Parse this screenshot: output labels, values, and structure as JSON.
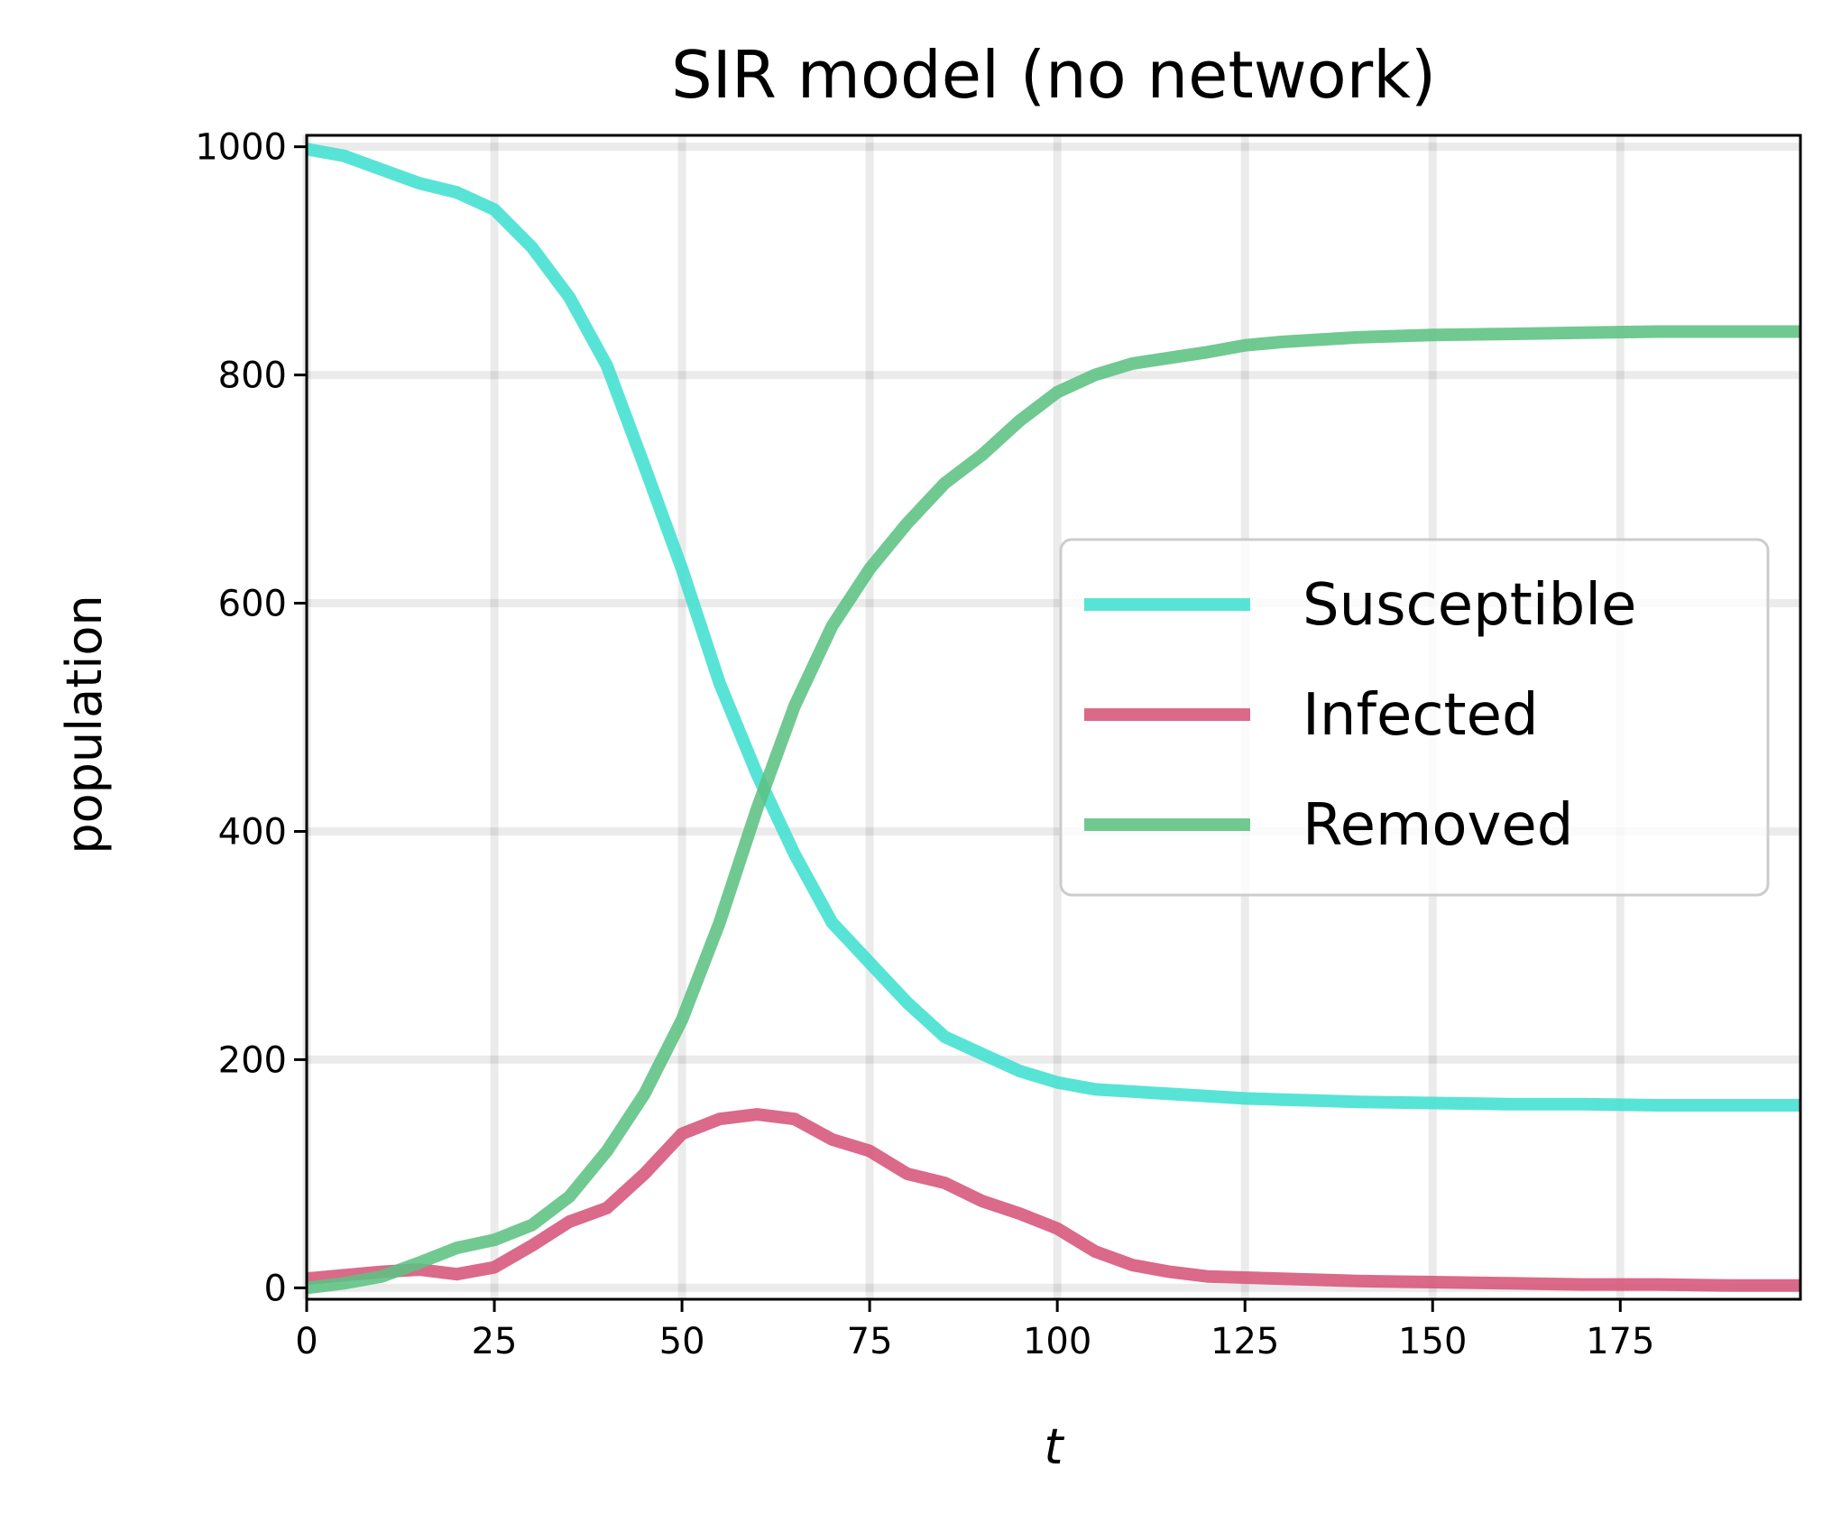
{
  "chart_data": {
    "type": "line",
    "title": "SIR model (no network)",
    "xlabel": "t",
    "ylabel": "population",
    "xlim": [
      0,
      199
    ],
    "ylim": [
      -10,
      1010
    ],
    "xticks": [
      0,
      25,
      50,
      75,
      100,
      125,
      150,
      175
    ],
    "yticks": [
      0,
      200,
      400,
      600,
      800,
      1000
    ],
    "grid": true,
    "legend_position": "center-right",
    "series": [
      {
        "name": "Susceptible",
        "color": "#40E0D0",
        "x": [
          0,
          5,
          10,
          15,
          20,
          25,
          30,
          35,
          40,
          45,
          50,
          55,
          60,
          65,
          70,
          75,
          80,
          85,
          90,
          95,
          100,
          105,
          110,
          115,
          120,
          125,
          130,
          135,
          140,
          150,
          160,
          170,
          180,
          190,
          199
        ],
        "y": [
          998,
          992,
          980,
          968,
          960,
          945,
          912,
          868,
          808,
          720,
          630,
          530,
          450,
          380,
          320,
          285,
          250,
          220,
          205,
          190,
          180,
          174,
          172,
          170,
          168,
          166,
          165,
          164,
          163,
          162,
          161,
          161,
          160,
          160,
          160
        ]
      },
      {
        "name": "Infected",
        "color": "#D6547A",
        "x": [
          0,
          5,
          10,
          15,
          20,
          25,
          30,
          35,
          40,
          45,
          50,
          55,
          60,
          65,
          70,
          75,
          80,
          85,
          90,
          95,
          100,
          105,
          110,
          115,
          120,
          125,
          130,
          135,
          140,
          150,
          160,
          170,
          180,
          190,
          199
        ],
        "y": [
          8,
          11,
          14,
          16,
          12,
          18,
          37,
          58,
          70,
          100,
          135,
          148,
          152,
          148,
          130,
          120,
          100,
          92,
          76,
          65,
          52,
          32,
          20,
          14,
          10,
          9,
          8,
          7,
          6,
          5,
          4,
          3,
          3,
          2,
          2
        ]
      },
      {
        "name": "Removed",
        "color": "#5CC282",
        "x": [
          0,
          5,
          10,
          15,
          20,
          25,
          30,
          35,
          40,
          45,
          50,
          55,
          60,
          65,
          70,
          75,
          80,
          85,
          90,
          95,
          100,
          105,
          110,
          115,
          120,
          125,
          130,
          135,
          140,
          150,
          160,
          170,
          180,
          190,
          199
        ],
        "y": [
          0,
          4,
          10,
          22,
          35,
          42,
          55,
          80,
          120,
          170,
          235,
          320,
          420,
          510,
          580,
          630,
          670,
          705,
          730,
          760,
          785,
          800,
          810,
          815,
          820,
          826,
          829,
          831,
          833,
          835,
          836,
          837,
          838,
          838,
          838
        ]
      }
    ]
  }
}
